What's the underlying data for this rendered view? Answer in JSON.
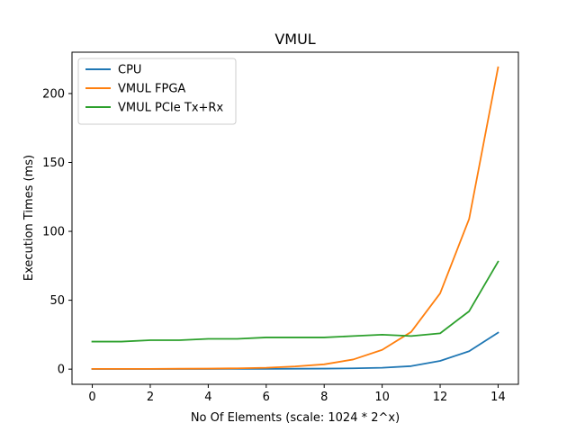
{
  "chart_data": {
    "type": "line",
    "title": "VMUL",
    "xlabel": "No Of Elements (scale: 1024 * 2^x)",
    "ylabel": "Execution Times (ms)",
    "x": [
      0,
      1,
      2,
      3,
      4,
      5,
      6,
      7,
      8,
      9,
      10,
      11,
      12,
      13,
      14
    ],
    "xlim": [
      -0.7,
      14.7
    ],
    "ylim": [
      -11,
      230
    ],
    "xticks": [
      0,
      2,
      4,
      6,
      8,
      10,
      12,
      14
    ],
    "yticks": [
      0,
      50,
      100,
      150,
      200
    ],
    "grid": false,
    "legend_position": "top-left",
    "series": [
      {
        "name": "CPU",
        "color": "#1f77b4",
        "values": [
          0.1,
          0.1,
          0.1,
          0.1,
          0.1,
          0.2,
          0.2,
          0.3,
          0.4,
          0.6,
          1.0,
          2.2,
          6.0,
          13.0,
          26.5
        ]
      },
      {
        "name": "VMUL FPGA",
        "color": "#ff7f0e",
        "values": [
          0.2,
          0.2,
          0.2,
          0.3,
          0.4,
          0.6,
          1.0,
          2.0,
          3.5,
          7.0,
          14.0,
          27.0,
          55.0,
          109.0,
          219.0
        ]
      },
      {
        "name": "VMUL PCIe Tx+Rx",
        "color": "#2ca02c",
        "values": [
          20.0,
          20.0,
          21.0,
          21.0,
          22.0,
          22.0,
          23.0,
          23.0,
          23.0,
          24.0,
          25.0,
          24.0,
          26.0,
          42.0,
          78.0
        ]
      }
    ]
  }
}
